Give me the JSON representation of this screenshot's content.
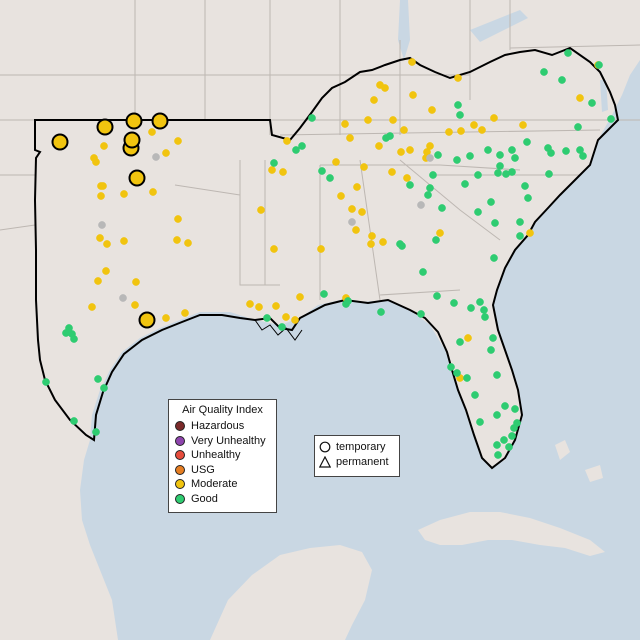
{
  "aqi_legend": {
    "title": "Air Quality Index",
    "items": [
      {
        "label": "Hazardous",
        "color": "#7b2a2a"
      },
      {
        "label": "Very Unhealthy",
        "color": "#8e44ad"
      },
      {
        "label": "Unhealthy",
        "color": "#e74c3c"
      },
      {
        "label": "USG",
        "color": "#e67e22"
      },
      {
        "label": "Moderate",
        "color": "#f1c40f"
      },
      {
        "label": "Good",
        "color": "#2ecc71"
      }
    ]
  },
  "type_legend": {
    "items": [
      {
        "label": "temporary",
        "icon": "circle-icon"
      },
      {
        "label": "permanent",
        "icon": "triangle-icon"
      }
    ]
  },
  "colors": {
    "land": "#e8e3df",
    "water": "#c9d7e3",
    "state_border": "#bdb7b2",
    "region_border": "#000000",
    "moderate": "#f1c40f",
    "good": "#2ecc71",
    "missing": "#b8b8b8"
  }
}
